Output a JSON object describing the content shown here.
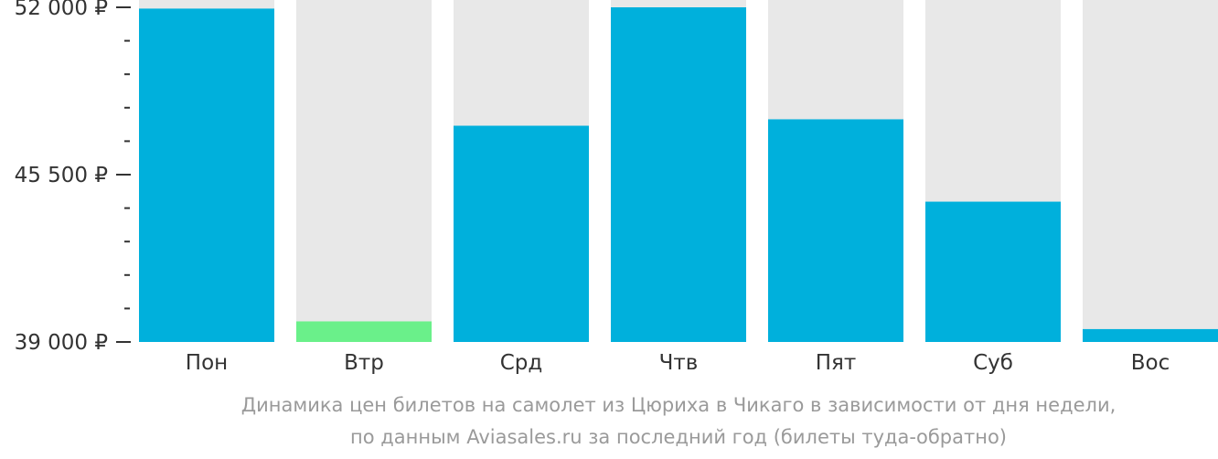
{
  "chart_data": {
    "type": "bar",
    "categories": [
      "Пон",
      "Втр",
      "Срд",
      "Чтв",
      "Пят",
      "Суб",
      "Вос"
    ],
    "values": [
      51950,
      39800,
      47400,
      52000,
      47650,
      44450,
      39500
    ],
    "bar_colors": [
      "#00b0dc",
      "#6af08a",
      "#00b0dc",
      "#00b0dc",
      "#00b0dc",
      "#00b0dc",
      "#00b0dc"
    ],
    "background_bar_color": "#e8e8e8",
    "ylim": [
      39000,
      52000
    ],
    "y_ticks_labeled": [
      {
        "value": 52000,
        "label": "52 000 ₽"
      },
      {
        "value": 45500,
        "label": "45 500 ₽"
      },
      {
        "value": 39000,
        "label": "39 000 ₽"
      }
    ],
    "y_minor_tick_step": 1300,
    "title": "",
    "xlabel": "",
    "ylabel": "",
    "grid": false,
    "legend": "none"
  },
  "caption": {
    "line1": "Динамика цен билетов на самолет из Цюриха в Чикаго в зависимости от дня недели,",
    "line2": "по данным Aviasales.ru за последний год (билеты туда-обратно)"
  }
}
